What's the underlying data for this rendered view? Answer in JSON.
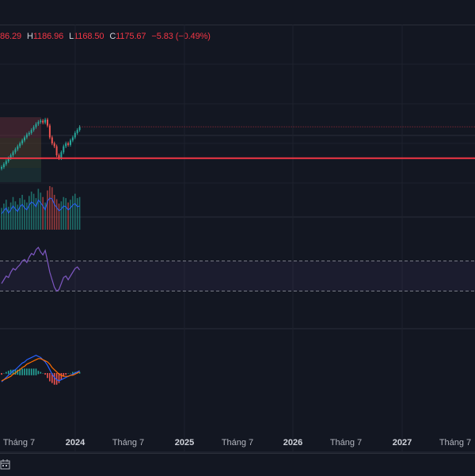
{
  "ohlc": {
    "open_partial": "86.29",
    "high_label": "H",
    "high": "1186.96",
    "low_label": "L",
    "low": "1168.50",
    "close_label": "C",
    "close": "1175.67",
    "change": "−5.83 (−0.49%)"
  },
  "colors": {
    "background": "#131722",
    "up": "#26a69a",
    "down": "#ef5350",
    "support_line": "#f23645",
    "rsi_line": "#7e57c2",
    "macd_line": "#2962ff",
    "signal_line": "#ff6d00"
  },
  "icons": {
    "bottom_left": "calendar-range-icon"
  },
  "chart_data": [
    {
      "type": "candlestick",
      "name_context": "price pane",
      "x_ticks": [
        "Tháng 7",
        "2024",
        "Tháng 7",
        "2025",
        "Tháng 7",
        "2026",
        "Tháng 7",
        "2027",
        "Tháng 7"
      ],
      "year_ticks": [
        "2024",
        "2025",
        "2026",
        "2027"
      ],
      "close_series": [
        1040,
        1050,
        1060,
        1070,
        1080,
        1090,
        1100,
        1110,
        1120,
        1130,
        1140,
        1150,
        1155,
        1165,
        1175,
        1185,
        1192,
        1196,
        1190,
        1200,
        1180,
        1140,
        1120,
        1110,
        1080,
        1070,
        1090,
        1110,
        1120,
        1115,
        1130,
        1140,
        1155,
        1165,
        1175
      ],
      "support_level": 1070,
      "last_price_level": 1175.67,
      "volume_series": [
        40,
        48,
        55,
        42,
        50,
        60,
        52,
        46,
        58,
        64,
        55,
        50,
        62,
        70,
        66,
        58,
        75,
        68,
        60,
        50,
        72,
        80,
        78,
        64,
        56,
        48,
        52,
        60,
        58,
        50,
        55,
        62,
        66,
        58,
        60
      ]
    },
    {
      "type": "line",
      "name_context": "RSI pane",
      "values": [
        40,
        45,
        50,
        48,
        55,
        60,
        58,
        62,
        65,
        70,
        72,
        68,
        75,
        80,
        78,
        85,
        88,
        82,
        78,
        84,
        70,
        55,
        45,
        35,
        30,
        32,
        40,
        48,
        50,
        45,
        50,
        55,
        60,
        62,
        58
      ],
      "band": [
        30,
        70
      ]
    },
    {
      "type": "line",
      "name_context": "MACD pane",
      "macd": [
        -8,
        -6,
        -4,
        -2,
        0,
        2,
        3,
        5,
        7,
        9,
        10,
        12,
        13,
        14,
        15,
        16,
        15,
        14,
        12,
        10,
        7,
        3,
        -1,
        -4,
        -6,
        -7,
        -6,
        -5,
        -4,
        -3,
        -2,
        -1,
        0,
        1,
        2
      ],
      "signal": [
        -7,
        -6,
        -5,
        -4,
        -3,
        -1,
        0,
        2,
        3,
        5,
        6,
        8,
        9,
        10,
        11,
        12,
        13,
        13,
        12,
        11,
        10,
        8,
        5,
        3,
        1,
        -1,
        -2,
        -3,
        -3,
        -3,
        -2,
        -2,
        -1,
        0,
        1
      ],
      "histogram": [
        -1,
        0,
        1,
        2,
        3,
        3,
        3,
        3,
        4,
        4,
        4,
        4,
        4,
        4,
        4,
        4,
        2,
        1,
        0,
        -1,
        -3,
        -5,
        -6,
        -7,
        -7,
        -6,
        -4,
        -2,
        -1,
        0,
        0,
        1,
        1,
        1,
        1
      ]
    }
  ]
}
